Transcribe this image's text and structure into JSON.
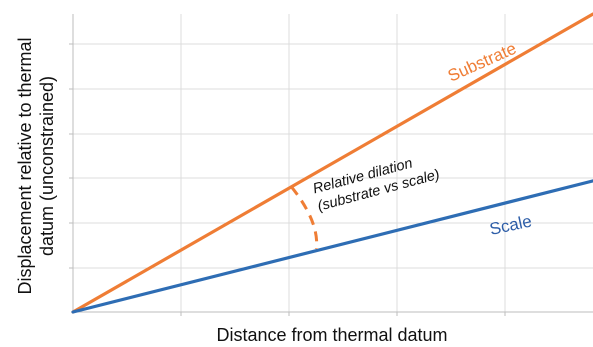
{
  "chart_data": {
    "type": "line",
    "title": "",
    "xlabel": "Distance from thermal datum",
    "ylabel_lines": [
      "Displacement relative to thermal",
      "datum (unconstrained)"
    ],
    "xlim": [
      0,
      1
    ],
    "ylim": [
      0,
      1
    ],
    "grid": true,
    "series": [
      {
        "name": "Substrate",
        "color": "#ef7d35",
        "x": [
          0,
          1
        ],
        "y": [
          0,
          1
        ]
      },
      {
        "name": "Scale",
        "color": "#2e6db4",
        "x": [
          0,
          1
        ],
        "y": [
          0,
          0.44
        ]
      }
    ],
    "annotation": {
      "lines": [
        "Relative dilation",
        "(substrate vs scale)"
      ],
      "at_x": 0.42,
      "color": "#ef7d35",
      "style": "dashed-arc"
    }
  }
}
